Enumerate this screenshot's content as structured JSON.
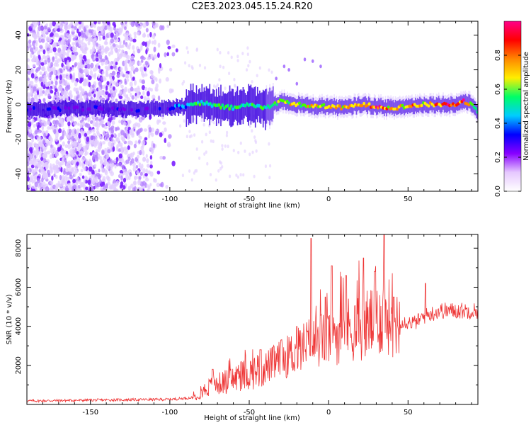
{
  "title": "C2E3.2023.045.15.24.R20",
  "colors": {
    "snr_line": "#ee3333",
    "speckle": "#9b4dff",
    "ridge_core": "#3a00e6",
    "colormap": [
      "#ffffff",
      "#e6c8ff",
      "#8800ff",
      "#0000ff",
      "#00ccff",
      "#00ff66",
      "#ffee00",
      "#ff8800",
      "#ff0000",
      "#ff0088"
    ]
  },
  "chart_data": [
    {
      "type": "heatmap",
      "name": "spectrogram",
      "xlabel": "Height of straight line (km)",
      "ylabel": "Frequency (Hz)",
      "xlim": [
        -190,
        94
      ],
      "ylim": [
        -50,
        48
      ],
      "xticks": [
        -150,
        -100,
        -50,
        0,
        50
      ],
      "yticks": [
        -40,
        -20,
        0,
        20,
        40
      ],
      "colorbar": {
        "label": "Normalized spectral amplitude",
        "range": [
          0,
          1
        ],
        "ticks": [
          0.0,
          0.2,
          0.4,
          0.6,
          0.8
        ]
      },
      "ridge": {
        "x": [
          -190,
          -150,
          -120,
          -100,
          -90,
          -80,
          -70,
          -60,
          -50,
          -40,
          -30,
          -20,
          -10,
          0,
          10,
          20,
          30,
          40,
          50,
          60,
          70,
          80,
          85,
          90,
          94
        ],
        "frequency": [
          -3,
          -2,
          -3,
          -2,
          -1,
          1,
          -1,
          -2,
          0,
          -2,
          2,
          0,
          -1,
          -1,
          -2,
          0,
          -1,
          -2,
          -1,
          0,
          0,
          0,
          2,
          0,
          -4
        ],
        "amplitude": [
          0.15,
          0.15,
          0.15,
          0.2,
          0.3,
          0.45,
          0.45,
          0.45,
          0.4,
          0.45,
          0.55,
          0.6,
          0.6,
          0.6,
          0.65,
          0.75,
          0.8,
          0.75,
          0.7,
          0.7,
          0.75,
          0.85,
          0.8,
          0.6,
          0.4
        ]
      },
      "noise_region_x": [
        -190,
        -95
      ]
    },
    {
      "type": "line",
      "name": "snr",
      "xlabel": "Height of straight line (km)",
      "ylabel": "SNR (10 * v/v)",
      "xlim": [
        -190,
        94
      ],
      "ylim": [
        0,
        8700
      ],
      "xticks": [
        -150,
        -100,
        -50,
        0,
        50
      ],
      "yticks": [
        2000,
        4000,
        6000,
        8000
      ],
      "envelope": {
        "x": [
          -190,
          -150,
          -100,
          -85,
          -80,
          -75,
          -60,
          -50,
          -40,
          -30,
          -20,
          -15,
          -10,
          -5,
          0,
          10,
          20,
          30,
          35,
          40,
          45,
          50,
          55,
          60,
          70,
          80,
          94
        ],
        "y": [
          180,
          220,
          260,
          350,
          650,
          900,
          1300,
          1600,
          1900,
          2300,
          2700,
          3000,
          3200,
          3300,
          3500,
          3800,
          4000,
          4300,
          4600,
          4400,
          4300,
          4200,
          4200,
          4500,
          4800,
          4800,
          4800
        ]
      },
      "peaks": [
        {
          "x": -73,
          "y": 1800
        },
        {
          "x": -43,
          "y": 2800
        },
        {
          "x": -30,
          "y": 3300
        },
        {
          "x": -20,
          "y": 4000
        },
        {
          "x": -11,
          "y": 8500
        },
        {
          "x": -2,
          "y": 5500
        },
        {
          "x": 2,
          "y": 7100
        },
        {
          "x": 11,
          "y": 6600
        },
        {
          "x": 22,
          "y": 7500
        },
        {
          "x": 29,
          "y": 6800
        },
        {
          "x": 35,
          "y": 8700
        },
        {
          "x": 41,
          "y": 5500
        },
        {
          "x": 61,
          "y": 6200
        }
      ]
    }
  ]
}
